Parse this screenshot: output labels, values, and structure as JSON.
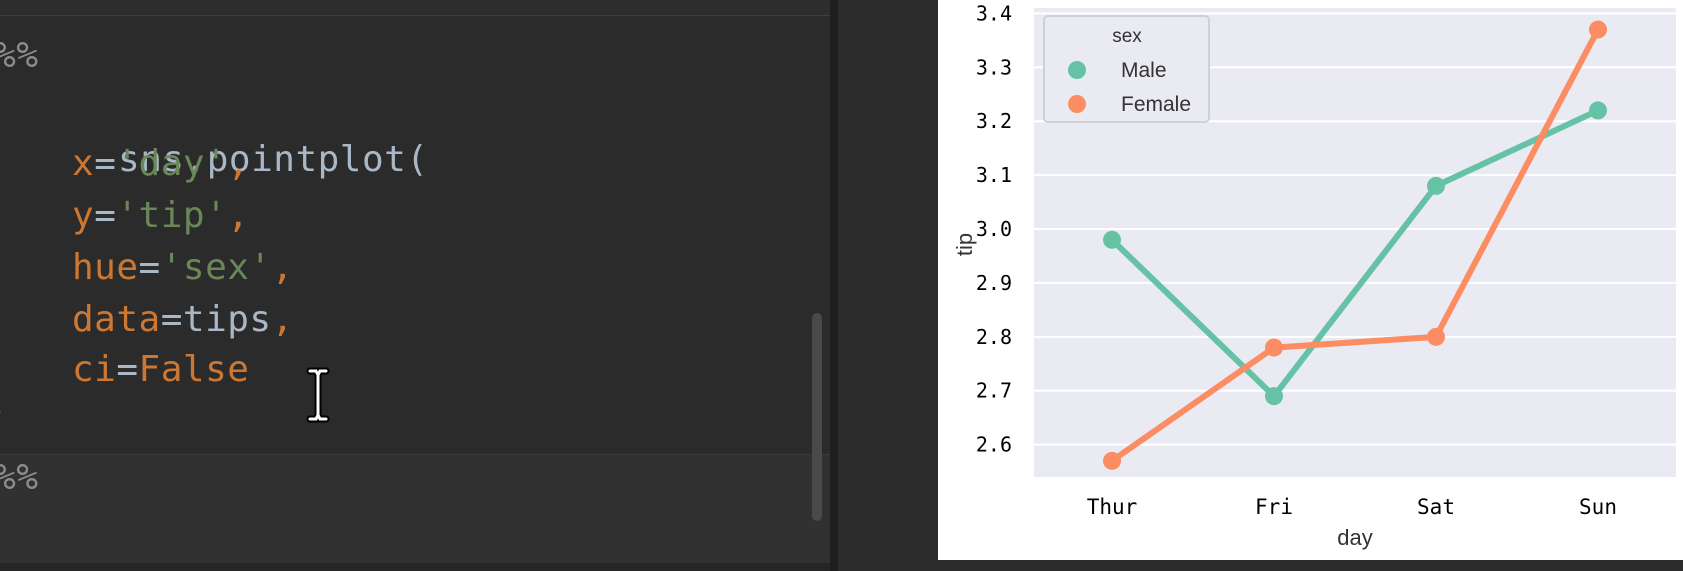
{
  "editor": {
    "cell_marker_top": "#%%",
    "cell_marker_bottom": "#%%",
    "code": {
      "fn": "sns.pointplot(",
      "lines": [
        {
          "kw": "x",
          "op": "=",
          "val": "'day'",
          "val_type": "str",
          "comma": ","
        },
        {
          "kw": "y",
          "op": "=",
          "val": "'tip'",
          "val_type": "str",
          "comma": ","
        },
        {
          "kw": "hue",
          "op": "=",
          "val": "'sex'",
          "val_type": "str",
          "comma": ","
        },
        {
          "kw": "data",
          "op": "=",
          "val": "tips",
          "val_type": "plain",
          "comma": ","
        },
        {
          "kw": "ci",
          "op": "=",
          "val": "False",
          "val_type": "const",
          "comma": ""
        }
      ],
      "close": ")"
    }
  },
  "colors": {
    "male": "#66c2a5",
    "female": "#fc8d62",
    "plot_bg": "#eaeaf2",
    "grid": "#ffffff"
  },
  "chart_data": {
    "type": "line",
    "categories": [
      "Thur",
      "Fri",
      "Sat",
      "Sun"
    ],
    "series": [
      {
        "name": "Male",
        "values": [
          2.98,
          2.69,
          3.08,
          3.22
        ]
      },
      {
        "name": "Female",
        "values": [
          2.57,
          2.78,
          2.8,
          3.37
        ]
      }
    ],
    "xlabel": "day",
    "ylabel": "tip",
    "yticks": [
      "2.6",
      "2.7",
      "2.8",
      "2.9",
      "3.0",
      "3.1",
      "3.2",
      "3.3",
      "3.4"
    ],
    "ylim": [
      2.54,
      3.41
    ],
    "legend": {
      "title": "sex",
      "placement": "top-left"
    },
    "grid": true
  }
}
